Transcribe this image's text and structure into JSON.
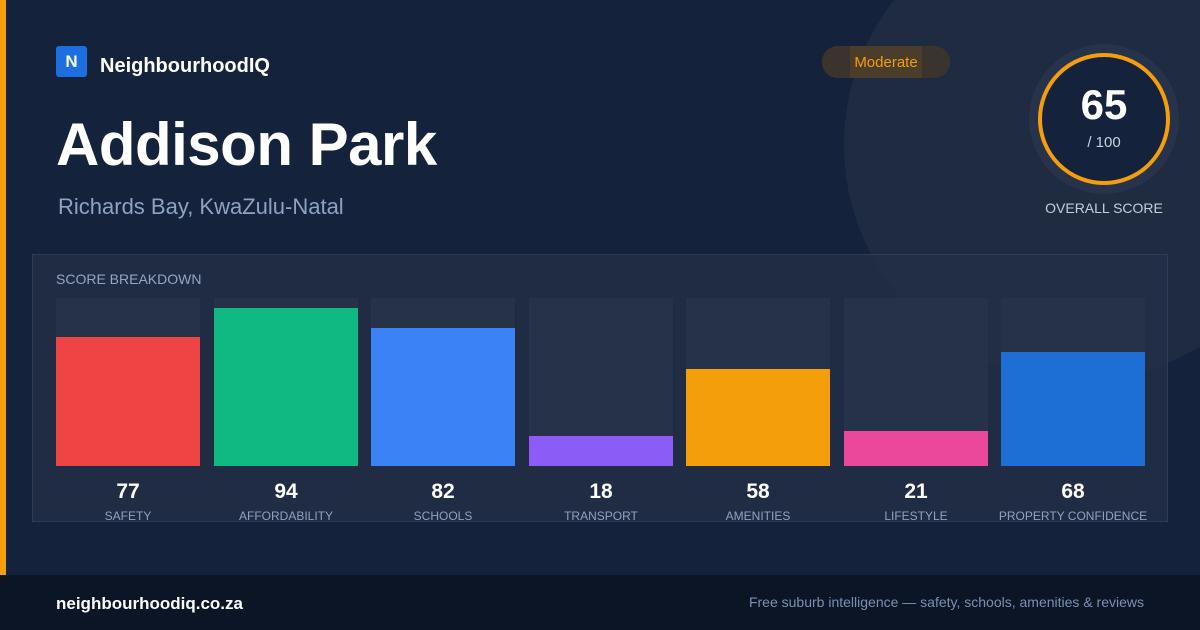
{
  "brand": {
    "logo_letter": "N",
    "name": "NeighbourhoodIQ"
  },
  "suburb": {
    "name": "Addison Park",
    "location": "Richards Bay, KwaZulu-Natal"
  },
  "rating_badge": "Moderate",
  "overall": {
    "score": "65",
    "max_label": "/ 100",
    "label": "OVERALL SCORE",
    "ring_color": "#f59e0b"
  },
  "breakdown_title": "SCORE BREAKDOWN",
  "chart_data": {
    "type": "bar",
    "categories": [
      "SAFETY",
      "AFFORDABILITY",
      "SCHOOLS",
      "TRANSPORT",
      "AMENITIES",
      "LIFESTYLE",
      "PROPERTY CONFIDENCE"
    ],
    "values": [
      77,
      94,
      82,
      18,
      58,
      21,
      68
    ],
    "colors": [
      "#ef4444",
      "#10b981",
      "#3b82f6",
      "#8b5cf6",
      "#f59e0b",
      "#ec4899",
      "#1d6fd6"
    ],
    "ylim": [
      0,
      100
    ],
    "title": "SCORE BREAKDOWN"
  },
  "footer": {
    "url": "neighbourhoodiq.co.za",
    "tagline": "Free suburb intelligence — safety, schools, amenities & reviews"
  }
}
